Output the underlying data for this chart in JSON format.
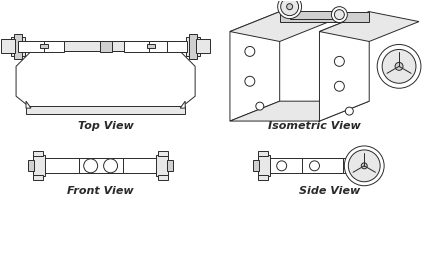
{
  "bg_color": "#ffffff",
  "line_color": "#2a2a2a",
  "lw": 0.7,
  "title_fontsize": 8,
  "title_fontweight": "bold",
  "labels": [
    "Top View",
    "Isometric View",
    "Front View",
    "Side View"
  ]
}
